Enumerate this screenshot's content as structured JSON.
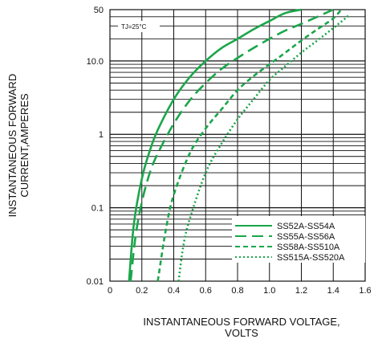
{
  "chart_data": {
    "type": "line",
    "x_scale": "linear",
    "y_scale": "log",
    "xlim": [
      0,
      1.6
    ],
    "ylim": [
      0.01,
      50
    ],
    "x_ticks": [
      "0",
      "0.2",
      "0.4",
      "0.6",
      "0.8",
      "1.0",
      "1.2",
      "1.4",
      "1.6"
    ],
    "x_tick_values": [
      0,
      0.2,
      0.4,
      0.6,
      0.8,
      1.0,
      1.2,
      1.4,
      1.6
    ],
    "y_ticks": [
      "0.01",
      "0.1",
      "1",
      "10.0",
      "50"
    ],
    "y_tick_values": [
      0.01,
      0.1,
      1,
      10,
      50
    ],
    "xlabel": [
      "INSTANTANEOUS FORWARD VOLTAGE,",
      "VOLTS"
    ],
    "ylabel": [
      "INSTANTANEOUS FORWARD",
      "CURRENT,AMPERES"
    ],
    "annotation": "TJ=25°C",
    "grid": true,
    "legend_position": "bottom-right",
    "color": "#1aa64a",
    "series": [
      {
        "name": "SS52A-SS54A",
        "style": "solid",
        "x": [
          0.12,
          0.15,
          0.2,
          0.25,
          0.3,
          0.4,
          0.5,
          0.6,
          0.7,
          0.8,
          0.9,
          1.0,
          1.1,
          1.2
        ],
        "y": [
          0.01,
          0.06,
          0.25,
          0.6,
          1.15,
          3.0,
          6.0,
          10.0,
          15.0,
          20.0,
          27.0,
          35.0,
          45.0,
          50.0
        ]
      },
      {
        "name": "SS55A-SS56A",
        "style": "dashed",
        "x": [
          0.13,
          0.16,
          0.2,
          0.25,
          0.3,
          0.4,
          0.5,
          0.6,
          0.7,
          0.8,
          0.9,
          1.0,
          1.1,
          1.2,
          1.3,
          1.4
        ],
        "y": [
          0.01,
          0.04,
          0.12,
          0.3,
          0.55,
          1.4,
          2.9,
          5.0,
          7.8,
          11.0,
          15.0,
          20.0,
          26.0,
          32.0,
          40.0,
          50.0
        ]
      },
      {
        "name": "SS58A-SS510A",
        "style": "dashed-short",
        "x": [
          0.3,
          0.35,
          0.4,
          0.5,
          0.6,
          0.7,
          0.8,
          0.9,
          1.0,
          1.1,
          1.2,
          1.3,
          1.4,
          1.45
        ],
        "y": [
          0.01,
          0.05,
          0.15,
          0.55,
          1.2,
          2.2,
          4.0,
          6.2,
          9.0,
          13.0,
          19.0,
          27.0,
          38.0,
          50.0
        ]
      },
      {
        "name": "SS515A-SS520A",
        "style": "dotted",
        "x": [
          0.43,
          0.46,
          0.5,
          0.6,
          0.7,
          0.8,
          0.9,
          1.0,
          1.1,
          1.2,
          1.3,
          1.4,
          1.5
        ],
        "y": [
          0.01,
          0.03,
          0.07,
          0.3,
          0.75,
          1.6,
          3.0,
          5.5,
          8.5,
          13.0,
          19.0,
          28.0,
          42.0
        ]
      }
    ]
  }
}
